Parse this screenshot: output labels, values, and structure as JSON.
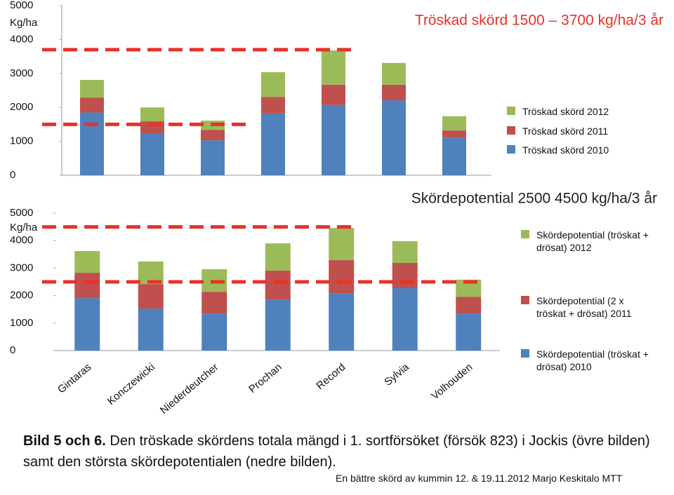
{
  "chart_data": [
    {
      "type": "bar",
      "stacked": true,
      "title": "Tröskad skörd 1500 – 3700 kg/ha/3 år",
      "title_color": "#e8312a",
      "ylabel": "Kg/ha",
      "ylim": [
        0,
        5000
      ],
      "yticks": [
        0,
        1000,
        2000,
        3000,
        4000,
        5000
      ],
      "reference_lines": [
        3700,
        1500
      ],
      "reference_color": "#e8312a",
      "series": [
        {
          "name": "Tröskad skörd 2010",
          "color": "#4f81bd",
          "values": [
            1850,
            1220,
            1030,
            1820,
            2070,
            2210,
            1100
          ]
        },
        {
          "name": "Tröskad skörd 2011",
          "color": "#c0504d",
          "values": [
            440,
            370,
            310,
            490,
            600,
            460,
            220
          ]
        },
        {
          "name": "Tröskad skörd 2012",
          "color": "#9bbb59",
          "values": [
            520,
            410,
            270,
            730,
            1010,
            640,
            420
          ]
        }
      ]
    },
    {
      "type": "bar",
      "stacked": true,
      "title": "Skördepotential 2500 4500 kg/ha/3 år",
      "title_color": "#222222",
      "ylabel": "Kg/ha",
      "ylim": [
        0,
        5000
      ],
      "yticks": [
        0,
        1000,
        2000,
        3000,
        4000,
        5000
      ],
      "reference_lines": [
        4500,
        2500
      ],
      "reference_color": "#e8312a",
      "categories": [
        "Gintaras",
        "Konczewicki",
        "Niederdeutcher",
        "Prochan",
        "Record",
        "Sylvia",
        "Volhouden"
      ],
      "series": [
        {
          "name": "Skördepotential (tröskat + drösat) 2010",
          "color": "#4f81bd",
          "values": [
            1910,
            1530,
            1350,
            1860,
            2090,
            2270,
            1350
          ]
        },
        {
          "name": "Skördepotential (2 x tröskat + drösat) 2011",
          "color": "#c0504d",
          "values": [
            920,
            890,
            790,
            1050,
            1200,
            920,
            610
          ]
        },
        {
          "name": "Skördepotential (tröskat + drösat) 2012",
          "color": "#9bbb59",
          "values": [
            790,
            820,
            820,
            990,
            1170,
            790,
            620
          ]
        }
      ]
    }
  ],
  "caption": {
    "bold": "Bild 5 och 6.",
    "text": "Den tröskade skördens totala mängd i 1. sortförsöket (försök 823) i Jockis (övre bilden) samt den största skördepotentialen (nedre bilden)."
  },
  "footer": "En bättre skörd av kummin 12. & 19.11.2012 Marjo Keskitalo MTT"
}
